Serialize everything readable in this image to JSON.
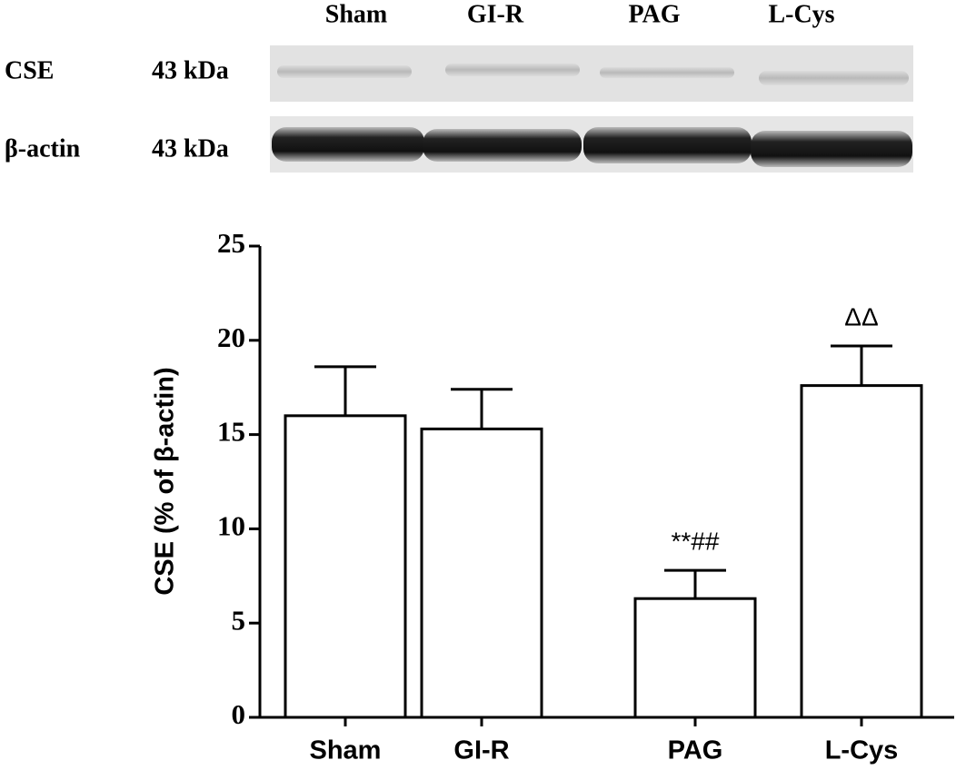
{
  "blot": {
    "lanes": [
      "Sham",
      "GI-R",
      "PAG",
      "L-Cys"
    ],
    "rows": [
      {
        "name": "CSE",
        "size": "43 kDa"
      },
      {
        "name": "β-actin",
        "size": "43 kDa"
      }
    ]
  },
  "chart_data": {
    "type": "bar",
    "y_label": "CSE (% of β-actin)",
    "categories": [
      "Sham",
      "GI-R",
      "PAG",
      "L-Cys"
    ],
    "values": [
      16.0,
      15.3,
      6.3,
      17.6
    ],
    "errors": [
      2.6,
      2.1,
      1.5,
      2.1
    ],
    "value_annotations": [
      null,
      null,
      "**##",
      "ΔΔ"
    ],
    "color": "#ffffff",
    "ylim": [
      0,
      25
    ],
    "yticks": [
      0,
      5,
      10,
      15,
      20,
      25
    ],
    "grid": false
  }
}
